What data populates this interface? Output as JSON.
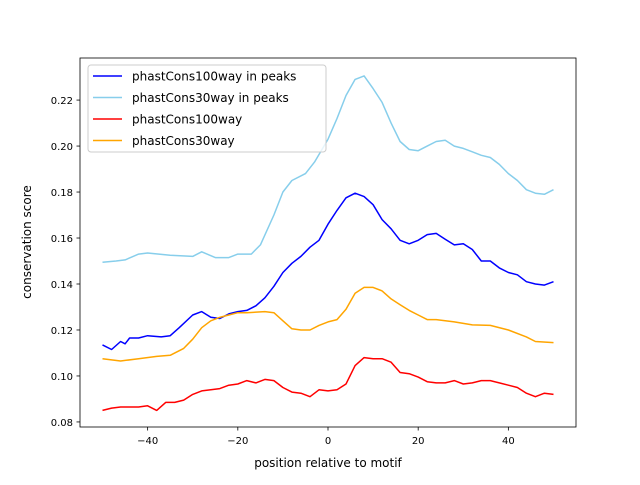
{
  "chart_data": {
    "type": "line",
    "title": "",
    "xlabel": "position relative to motif",
    "ylabel": "conservation score",
    "xlim": [
      -55,
      55
    ],
    "ylim": [
      0.0778,
      0.2383
    ],
    "xticks": [
      -40,
      -20,
      0,
      20,
      40
    ],
    "yticks": [
      0.08,
      0.1,
      0.12,
      0.14,
      0.16,
      0.18,
      0.2,
      0.22
    ],
    "legend_position": "top-left",
    "series": [
      {
        "name": "phastCons100way in peaks",
        "color": "#0000ff",
        "points": [
          [
            -50,
            0.1135
          ],
          [
            -48,
            0.1115
          ],
          [
            -46,
            0.115
          ],
          [
            -45,
            0.114
          ],
          [
            -44,
            0.1165
          ],
          [
            -42,
            0.1165
          ],
          [
            -40,
            0.1175
          ],
          [
            -37,
            0.117
          ],
          [
            -35,
            0.1175
          ],
          [
            -33,
            0.121
          ],
          [
            -30,
            0.1265
          ],
          [
            -28,
            0.128
          ],
          [
            -26,
            0.1255
          ],
          [
            -24,
            0.125
          ],
          [
            -22,
            0.127
          ],
          [
            -20,
            0.128
          ],
          [
            -18,
            0.1285
          ],
          [
            -16,
            0.1305
          ],
          [
            -14,
            0.134
          ],
          [
            -12,
            0.139
          ],
          [
            -10,
            0.145
          ],
          [
            -8,
            0.149
          ],
          [
            -6,
            0.152
          ],
          [
            -4,
            0.156
          ],
          [
            -2,
            0.159
          ],
          [
            0,
            0.166
          ],
          [
            2,
            0.172
          ],
          [
            4,
            0.1775
          ],
          [
            6,
            0.1795
          ],
          [
            8,
            0.178
          ],
          [
            10,
            0.1745
          ],
          [
            12,
            0.168
          ],
          [
            14,
            0.164
          ],
          [
            16,
            0.159
          ],
          [
            18,
            0.1575
          ],
          [
            20,
            0.159
          ],
          [
            22,
            0.1615
          ],
          [
            24,
            0.162
          ],
          [
            26,
            0.1595
          ],
          [
            28,
            0.157
          ],
          [
            30,
            0.1575
          ],
          [
            32,
            0.155
          ],
          [
            34,
            0.15
          ],
          [
            36,
            0.15
          ],
          [
            38,
            0.147
          ],
          [
            40,
            0.145
          ],
          [
            42,
            0.144
          ],
          [
            44,
            0.141
          ],
          [
            46,
            0.14
          ],
          [
            48,
            0.1395
          ],
          [
            50,
            0.141
          ]
        ]
      },
      {
        "name": "phastCons30way in peaks",
        "color": "#87ceeb",
        "points": [
          [
            -50,
            0.1495
          ],
          [
            -47,
            0.15
          ],
          [
            -45,
            0.1505
          ],
          [
            -42,
            0.153
          ],
          [
            -40,
            0.1535
          ],
          [
            -35,
            0.1525
          ],
          [
            -30,
            0.152
          ],
          [
            -28,
            0.154
          ],
          [
            -25,
            0.1515
          ],
          [
            -22,
            0.1515
          ],
          [
            -20,
            0.153
          ],
          [
            -17,
            0.153
          ],
          [
            -15,
            0.157
          ],
          [
            -12,
            0.17
          ],
          [
            -10,
            0.18
          ],
          [
            -8,
            0.185
          ],
          [
            -5,
            0.188
          ],
          [
            -3,
            0.193
          ],
          [
            0,
            0.203
          ],
          [
            2,
            0.212
          ],
          [
            4,
            0.222
          ],
          [
            6,
            0.229
          ],
          [
            8,
            0.2305
          ],
          [
            10,
            0.225
          ],
          [
            12,
            0.219
          ],
          [
            14,
            0.21
          ],
          [
            16,
            0.202
          ],
          [
            18,
            0.1985
          ],
          [
            20,
            0.198
          ],
          [
            22,
            0.2
          ],
          [
            24,
            0.202
          ],
          [
            26,
            0.2025
          ],
          [
            28,
            0.2
          ],
          [
            30,
            0.199
          ],
          [
            32,
            0.1975
          ],
          [
            34,
            0.196
          ],
          [
            36,
            0.195
          ],
          [
            38,
            0.192
          ],
          [
            40,
            0.188
          ],
          [
            42,
            0.185
          ],
          [
            44,
            0.181
          ],
          [
            46,
            0.1795
          ],
          [
            48,
            0.179
          ],
          [
            50,
            0.181
          ]
        ]
      },
      {
        "name": "phastCons100way",
        "color": "#ff0000",
        "points": [
          [
            -50,
            0.085
          ],
          [
            -48,
            0.086
          ],
          [
            -46,
            0.0865
          ],
          [
            -42,
            0.0865
          ],
          [
            -40,
            0.087
          ],
          [
            -38,
            0.085
          ],
          [
            -36,
            0.0885
          ],
          [
            -34,
            0.0885
          ],
          [
            -32,
            0.0895
          ],
          [
            -30,
            0.092
          ],
          [
            -28,
            0.0935
          ],
          [
            -26,
            0.094
          ],
          [
            -24,
            0.0945
          ],
          [
            -22,
            0.096
          ],
          [
            -20,
            0.0965
          ],
          [
            -18,
            0.098
          ],
          [
            -16,
            0.097
          ],
          [
            -14,
            0.0985
          ],
          [
            -12,
            0.098
          ],
          [
            -10,
            0.095
          ],
          [
            -8,
            0.093
          ],
          [
            -6,
            0.0925
          ],
          [
            -4,
            0.091
          ],
          [
            -2,
            0.094
          ],
          [
            0,
            0.0935
          ],
          [
            2,
            0.094
          ],
          [
            4,
            0.0965
          ],
          [
            6,
            0.1045
          ],
          [
            8,
            0.108
          ],
          [
            10,
            0.1075
          ],
          [
            12,
            0.1075
          ],
          [
            14,
            0.106
          ],
          [
            16,
            0.1015
          ],
          [
            18,
            0.101
          ],
          [
            20,
            0.0995
          ],
          [
            22,
            0.0975
          ],
          [
            24,
            0.097
          ],
          [
            26,
            0.097
          ],
          [
            28,
            0.098
          ],
          [
            30,
            0.0965
          ],
          [
            32,
            0.097
          ],
          [
            34,
            0.098
          ],
          [
            36,
            0.098
          ],
          [
            38,
            0.097
          ],
          [
            40,
            0.096
          ],
          [
            42,
            0.095
          ],
          [
            44,
            0.0925
          ],
          [
            46,
            0.091
          ],
          [
            48,
            0.0925
          ],
          [
            50,
            0.092
          ]
        ]
      },
      {
        "name": "phastCons30way",
        "color": "#ffa500",
        "points": [
          [
            -50,
            0.1075
          ],
          [
            -46,
            0.1065
          ],
          [
            -42,
            0.1075
          ],
          [
            -38,
            0.1085
          ],
          [
            -35,
            0.109
          ],
          [
            -32,
            0.112
          ],
          [
            -30,
            0.116
          ],
          [
            -28,
            0.121
          ],
          [
            -26,
            0.124
          ],
          [
            -24,
            0.1255
          ],
          [
            -22,
            0.1265
          ],
          [
            -20,
            0.1275
          ],
          [
            -18,
            0.1275
          ],
          [
            -14,
            0.128
          ],
          [
            -12,
            0.1275
          ],
          [
            -10,
            0.124
          ],
          [
            -8,
            0.1205
          ],
          [
            -6,
            0.12
          ],
          [
            -4,
            0.12
          ],
          [
            -2,
            0.122
          ],
          [
            0,
            0.1235
          ],
          [
            2,
            0.1245
          ],
          [
            4,
            0.129
          ],
          [
            6,
            0.136
          ],
          [
            8,
            0.1385
          ],
          [
            10,
            0.1385
          ],
          [
            12,
            0.137
          ],
          [
            14,
            0.1335
          ],
          [
            16,
            0.131
          ],
          [
            18,
            0.1285
          ],
          [
            20,
            0.1265
          ],
          [
            22,
            0.1245
          ],
          [
            24,
            0.1245
          ],
          [
            28,
            0.1235
          ],
          [
            32,
            0.1222
          ],
          [
            36,
            0.122
          ],
          [
            40,
            0.12
          ],
          [
            44,
            0.117
          ],
          [
            46,
            0.115
          ],
          [
            50,
            0.1145
          ]
        ]
      }
    ]
  }
}
